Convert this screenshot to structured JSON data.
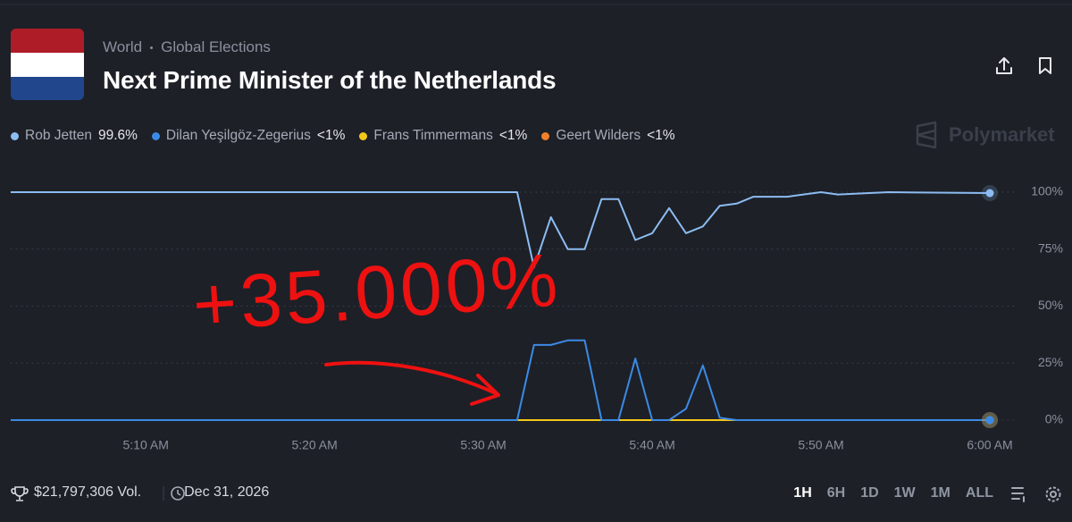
{
  "header": {
    "breadcrumb": [
      "World",
      "Global Elections"
    ],
    "title": "Next Prime Minister of the Netherlands"
  },
  "chart_data": {
    "type": "line",
    "x": [
      "05:02",
      "05:32",
      "05:33",
      "05:34",
      "05:35",
      "05:36",
      "05:37",
      "05:38",
      "05:39",
      "05:40",
      "05:41",
      "05:42",
      "05:43",
      "05:44",
      "05:45",
      "05:46",
      "05:48",
      "05:50",
      "05:51",
      "05:54",
      "06:00"
    ],
    "xlim": [
      "05:02",
      "06:00"
    ],
    "xticks": [
      {
        "value": "05:10",
        "label": "5:10 AM"
      },
      {
        "value": "05:20",
        "label": "5:20 AM"
      },
      {
        "value": "05:30",
        "label": "5:30 AM"
      },
      {
        "value": "05:40",
        "label": "5:40 AM"
      },
      {
        "value": "05:50",
        "label": "5:50 AM"
      },
      {
        "value": "06:00",
        "label": "6:00 AM"
      }
    ],
    "ylim": [
      0,
      100
    ],
    "yticks": [
      {
        "value": 0,
        "label": "0%"
      },
      {
        "value": 25,
        "label": "25%"
      },
      {
        "value": 50,
        "label": "50%"
      },
      {
        "value": 75,
        "label": "75%"
      },
      {
        "value": 100,
        "label": "100%"
      }
    ],
    "grid": true,
    "series": [
      {
        "name": "Rob Jetten",
        "color": "#8cbcf2",
        "latest_label": "99.6%",
        "values": [
          100,
          100,
          67,
          89,
          75,
          75,
          97,
          97,
          79,
          82,
          93,
          82,
          85,
          94,
          95,
          98,
          98,
          100,
          99,
          100,
          99.6
        ]
      },
      {
        "name": "Dilan Yeşilgöz-Zegerius",
        "color": "#3b8ae6",
        "latest_label": "<1%",
        "values": [
          0,
          0,
          33,
          33,
          35,
          35,
          0,
          0,
          27,
          0,
          0,
          5,
          24,
          1,
          0,
          0,
          0,
          0,
          0,
          0,
          0
        ]
      },
      {
        "name": "Frans Timmermans",
        "color": "#f2c71c",
        "latest_label": "<1%",
        "values": [
          0,
          0,
          0,
          0,
          0,
          0,
          0,
          0,
          0,
          0,
          0,
          0,
          0,
          0,
          0,
          0,
          0,
          0,
          0,
          0,
          0
        ]
      },
      {
        "name": "Geert Wilders",
        "color": "#f0812a",
        "latest_label": "<1%",
        "values": [
          0,
          0,
          0,
          0,
          0,
          0,
          0,
          0,
          0,
          0,
          0,
          0,
          0,
          0,
          0,
          0,
          0,
          0,
          0,
          0,
          0
        ]
      }
    ],
    "watermark": "Polymarket",
    "annotation": "+35.000%"
  },
  "footer": {
    "volume": "$21,797,306 Vol.",
    "end_date": "Dec 31, 2026",
    "ranges": [
      "1H",
      "6H",
      "1D",
      "1W",
      "1M",
      "ALL"
    ],
    "active_range": "1H"
  }
}
